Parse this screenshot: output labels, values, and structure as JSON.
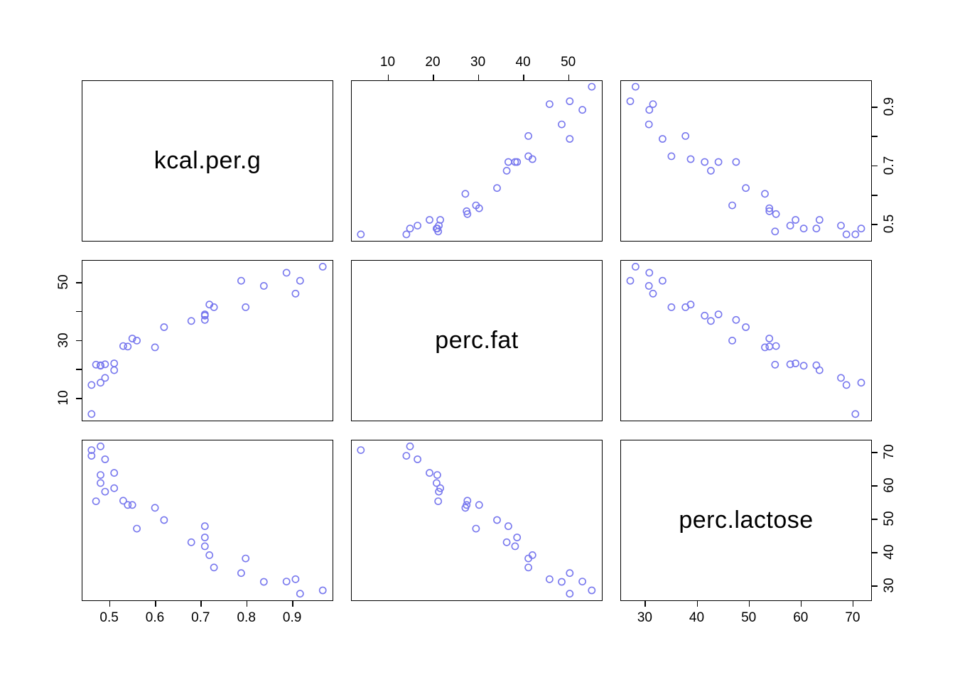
{
  "chart_data": {
    "type": "scatter",
    "subtype": "pairs-matrix",
    "title": "",
    "columns": [
      "kcal.per.g",
      "perc.fat",
      "perc.lactose"
    ],
    "points": [
      [
        0.49,
        16.6,
        67.98
      ],
      [
        0.51,
        19.27,
        63.82
      ],
      [
        0.46,
        14.11,
        69.04
      ],
      [
        0.48,
        14.91,
        71.91
      ],
      [
        0.6,
        27.28,
        53.22
      ],
      [
        0.47,
        21.22,
        55.2
      ],
      [
        0.56,
        29.66,
        46.88
      ],
      [
        0.89,
        53.41,
        30.79
      ],
      [
        0.92,
        50.58,
        27.09
      ],
      [
        0.8,
        41.35,
        37.8
      ],
      [
        0.46,
        3.93,
        70.77
      ],
      [
        0.71,
        38.38,
        41.53
      ],
      [
        0.71,
        38.82,
        44.2
      ],
      [
        0.73,
        41.35,
        35.07
      ],
      [
        0.68,
        36.51,
        42.73
      ],
      [
        0.72,
        42.25,
        38.82
      ],
      [
        0.97,
        55.51,
        28.11
      ],
      [
        0.79,
        50.58,
        33.35
      ],
      [
        0.84,
        48.79,
        30.7
      ],
      [
        0.48,
        20.85,
        60.75
      ],
      [
        0.62,
        34.35,
        49.51
      ],
      [
        0.51,
        21.68,
        59.17
      ],
      [
        0.54,
        27.56,
        54.09
      ],
      [
        0.49,
        21.35,
        58.13
      ],
      [
        0.53,
        27.73,
        55.38
      ],
      [
        0.48,
        21.0,
        63.2
      ],
      [
        0.55,
        30.36,
        54.08
      ],
      [
        0.71,
        36.88,
        47.63
      ],
      [
        0.91,
        46.08,
        31.5
      ]
    ],
    "limits": [
      [
        0.44,
        0.99
      ],
      [
        1.9,
        57.6
      ],
      [
        25.3,
        73.7
      ]
    ],
    "panels": [
      {
        "id": "p00",
        "diag": true,
        "label_index": 0
      },
      {
        "id": "p01",
        "x": 1,
        "y": 0
      },
      {
        "id": "p02",
        "x": 2,
        "y": 0
      },
      {
        "id": "p10",
        "x": 0,
        "y": 1
      },
      {
        "id": "p11",
        "diag": true,
        "label_index": 1
      },
      {
        "id": "p12",
        "x": 2,
        "y": 1
      },
      {
        "id": "p20",
        "x": 0,
        "y": 2
      },
      {
        "id": "p21",
        "x": 1,
        "y": 2
      },
      {
        "id": "p22",
        "diag": true,
        "label_index": 2
      }
    ],
    "axes": [
      {
        "side": "top",
        "row": 0,
        "col": 1,
        "var": 1,
        "ticks": [
          10,
          20,
          30,
          40,
          50
        ],
        "labels": [
          "10",
          "20",
          "30",
          "40",
          "50"
        ]
      },
      {
        "side": "right",
        "row": 0,
        "col": 2,
        "var": 0,
        "ticks": [
          0.5,
          0.6,
          0.7,
          0.8,
          0.9
        ],
        "labels": [
          "0.5",
          "",
          "0.7",
          "",
          "0.9"
        ]
      },
      {
        "side": "left",
        "row": 1,
        "col": 0,
        "var": 1,
        "ticks": [
          10,
          20,
          30,
          40,
          50
        ],
        "labels": [
          "10",
          "",
          "30",
          "",
          "50"
        ]
      },
      {
        "side": "right",
        "row": 2,
        "col": 2,
        "var": 2,
        "ticks": [
          30,
          40,
          50,
          60,
          70
        ],
        "labels": [
          "30",
          "40",
          "50",
          "60",
          "70"
        ]
      },
      {
        "side": "bottom",
        "row": 2,
        "col": 0,
        "var": 0,
        "ticks": [
          0.5,
          0.6,
          0.7,
          0.8,
          0.9
        ],
        "labels": [
          "0.5",
          "0.6",
          "0.7",
          "0.8",
          "0.9"
        ]
      },
      {
        "side": "bottom",
        "row": 2,
        "col": 2,
        "var": 2,
        "ticks": [
          30,
          40,
          50,
          60,
          70
        ],
        "labels": [
          "30",
          "40",
          "50",
          "60",
          "70"
        ]
      }
    ],
    "style": {
      "point_color": "#7878ee",
      "axis_color": "#000000",
      "background": "#ffffff"
    },
    "legend": null,
    "grid": false
  }
}
